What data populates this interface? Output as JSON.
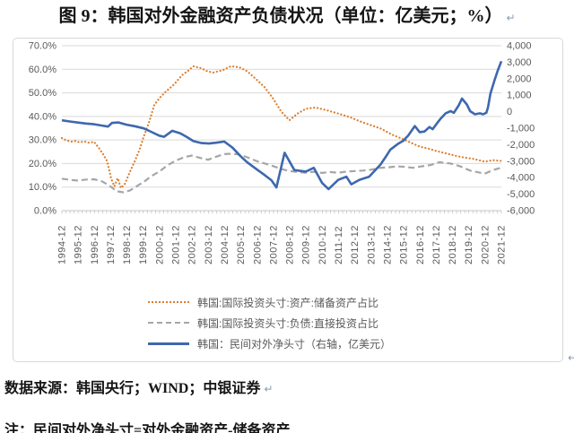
{
  "title": {
    "text": "图 9：韩国对外金融资产负债状况（单位：亿美元；%）",
    "pilcrow": "↵"
  },
  "source_line": "数据来源：韩国央行；WIND；中银证券",
  "source_pilcrow": "↵",
  "chart_pilcrow": "↵",
  "note_line": "注：民间对外净头寸=对外金融资产-储备资产",
  "colors": {
    "reserve_series": "#dc7e2e",
    "fdi_series": "#a6a6a6",
    "net_position_series": "#3e68ae",
    "gridline": "#d9d9d9",
    "axis_text": "#595959"
  },
  "chart_data": {
    "type": "line",
    "grid": true,
    "legend_position": "bottom",
    "x_axis": {
      "start": 1994.92,
      "end": 2021.92,
      "labels": [
        "1994-12",
        "1995-12",
        "1996-12",
        "1997-12",
        "1998-12",
        "1999-12",
        "2000-12",
        "2001-12",
        "2002-12",
        "2003-12",
        "2004-12",
        "2005-12",
        "2006-12",
        "2007-12",
        "2008-12",
        "2009-12",
        "2010-12",
        "2011-12",
        "2012-12",
        "2013-12",
        "2014-12",
        "2015-12",
        "2016-12",
        "2017-12",
        "2018-12",
        "2019-12",
        "2020-12",
        "2021-12"
      ],
      "minor_tick_interval": 0.25
    },
    "y_left": {
      "min": 0,
      "max": 70,
      "ticks": [
        "70.0%",
        "60.0%",
        "50.0%",
        "40.0%",
        "30.0%",
        "20.0%",
        "10.0%",
        "0.0%"
      ]
    },
    "y_right": {
      "min": -6000,
      "max": 4000,
      "ticks": [
        "4,000",
        "3,000",
        "2,000",
        "1,000",
        "0",
        "-1,000",
        "-2,000",
        "-3,000",
        "-4,000",
        "-5,000",
        "-6,000"
      ]
    },
    "series": [
      {
        "name": "韩国:国际投资头寸:资产:储备资产占比",
        "axis": "left",
        "style": "dotted",
        "color": "#dc7e2e",
        "width": 2.2,
        "points": [
          [
            1994.92,
            30.8
          ],
          [
            1995.2,
            29.8
          ],
          [
            1995.5,
            29.3
          ],
          [
            1995.75,
            29.6
          ],
          [
            1996.0,
            29.0
          ],
          [
            1996.3,
            29.4
          ],
          [
            1996.6,
            28.8
          ],
          [
            1996.9,
            29.2
          ],
          [
            1997.2,
            26.5
          ],
          [
            1997.45,
            24.0
          ],
          [
            1997.7,
            21.0
          ],
          [
            1997.95,
            13.5
          ],
          [
            1998.15,
            10.3
          ],
          [
            1998.35,
            13.8
          ],
          [
            1998.55,
            9.6
          ],
          [
            1998.8,
            11.5
          ],
          [
            1999.1,
            16.5
          ],
          [
            1999.4,
            21.0
          ],
          [
            1999.7,
            26.0
          ],
          [
            1999.95,
            31.5
          ],
          [
            2000.3,
            38.0
          ],
          [
            2000.6,
            45.0
          ],
          [
            2000.95,
            48.0
          ],
          [
            2001.3,
            50.5
          ],
          [
            2001.8,
            53.5
          ],
          [
            2002.3,
            57.5
          ],
          [
            2002.7,
            59.5
          ],
          [
            2003.0,
            61.3
          ],
          [
            2003.5,
            60.4
          ],
          [
            2003.8,
            59.3
          ],
          [
            2004.2,
            58.6
          ],
          [
            2004.8,
            59.6
          ],
          [
            2005.3,
            61.3
          ],
          [
            2005.8,
            60.9
          ],
          [
            2006.3,
            59.2
          ],
          [
            2006.9,
            55.5
          ],
          [
            2007.4,
            52.2
          ],
          [
            2007.9,
            47.5
          ],
          [
            2008.4,
            42.0
          ],
          [
            2008.9,
            38.4
          ],
          [
            2009.4,
            41.2
          ],
          [
            2009.9,
            43.2
          ],
          [
            2010.5,
            43.8
          ],
          [
            2011.2,
            42.6
          ],
          [
            2011.9,
            41.2
          ],
          [
            2012.6,
            39.7
          ],
          [
            2013.2,
            38.0
          ],
          [
            2013.9,
            36.3
          ],
          [
            2014.5,
            34.9
          ],
          [
            2015.2,
            32.3
          ],
          [
            2015.9,
            30.3
          ],
          [
            2016.5,
            28.4
          ],
          [
            2016.9,
            27.2
          ],
          [
            2017.5,
            26.2
          ],
          [
            2018.0,
            25.2
          ],
          [
            2018.6,
            24.2
          ],
          [
            2019.1,
            23.3
          ],
          [
            2019.6,
            22.6
          ],
          [
            2020.2,
            22.0
          ],
          [
            2020.9,
            20.8
          ],
          [
            2021.4,
            21.4
          ],
          [
            2021.92,
            21.1
          ]
        ]
      },
      {
        "name": "韩国:国际投资头寸:负债:直接投资占比",
        "axis": "left",
        "style": "dashed",
        "color": "#a6a6a6",
        "width": 2.2,
        "points": [
          [
            1994.92,
            13.6
          ],
          [
            1995.4,
            13.1
          ],
          [
            1995.9,
            12.8
          ],
          [
            1996.4,
            13.2
          ],
          [
            1996.9,
            13.3
          ],
          [
            1997.4,
            12.4
          ],
          [
            1997.9,
            10.3
          ],
          [
            1998.3,
            8.2
          ],
          [
            1998.7,
            7.8
          ],
          [
            1999.1,
            8.6
          ],
          [
            1999.5,
            10.3
          ],
          [
            1999.95,
            12.2
          ],
          [
            2000.4,
            14.6
          ],
          [
            2000.9,
            16.6
          ],
          [
            2001.4,
            19.2
          ],
          [
            2001.9,
            21.2
          ],
          [
            2002.4,
            22.6
          ],
          [
            2002.9,
            23.4
          ],
          [
            2003.4,
            22.4
          ],
          [
            2003.9,
            21.6
          ],
          [
            2004.4,
            22.9
          ],
          [
            2004.9,
            24.0
          ],
          [
            2005.4,
            24.2
          ],
          [
            2005.9,
            23.7
          ],
          [
            2006.4,
            22.4
          ],
          [
            2006.9,
            21.0
          ],
          [
            2007.4,
            20.0
          ],
          [
            2007.9,
            18.9
          ],
          [
            2008.4,
            17.7
          ],
          [
            2008.9,
            16.8
          ],
          [
            2009.4,
            16.4
          ],
          [
            2009.9,
            16.1
          ],
          [
            2010.4,
            16.5
          ],
          [
            2010.9,
            16.0
          ],
          [
            2011.4,
            16.4
          ],
          [
            2011.9,
            16.1
          ],
          [
            2012.4,
            16.6
          ],
          [
            2012.9,
            16.8
          ],
          [
            2013.4,
            17.0
          ],
          [
            2013.9,
            17.4
          ],
          [
            2014.5,
            18.2
          ],
          [
            2015.0,
            18.4
          ],
          [
            2015.5,
            18.8
          ],
          [
            2016.0,
            18.6
          ],
          [
            2016.5,
            18.2
          ],
          [
            2017.0,
            18.8
          ],
          [
            2017.6,
            19.4
          ],
          [
            2018.1,
            20.6
          ],
          [
            2018.8,
            20.0
          ],
          [
            2019.4,
            18.8
          ],
          [
            2020.0,
            17.0
          ],
          [
            2020.5,
            16.3
          ],
          [
            2020.9,
            15.7
          ],
          [
            2021.4,
            17.2
          ],
          [
            2021.92,
            18.3
          ]
        ]
      },
      {
        "name": "韩国：民间对外净头寸（右轴，亿美元）",
        "axis": "right",
        "style": "solid",
        "color": "#3e68ae",
        "width": 2.6,
        "points": [
          [
            1994.92,
            -520
          ],
          [
            1995.4,
            -590
          ],
          [
            1995.9,
            -660
          ],
          [
            1996.4,
            -720
          ],
          [
            1996.9,
            -760
          ],
          [
            1997.4,
            -840
          ],
          [
            1997.75,
            -900
          ],
          [
            1998.0,
            -680
          ],
          [
            1998.4,
            -650
          ],
          [
            1998.9,
            -790
          ],
          [
            1999.4,
            -880
          ],
          [
            1999.95,
            -1010
          ],
          [
            2000.4,
            -1220
          ],
          [
            2000.9,
            -1450
          ],
          [
            2001.2,
            -1520
          ],
          [
            2001.7,
            -1160
          ],
          [
            2002.2,
            -1310
          ],
          [
            2002.6,
            -1540
          ],
          [
            2003.0,
            -1780
          ],
          [
            2003.5,
            -1900
          ],
          [
            2003.95,
            -1930
          ],
          [
            2004.4,
            -1880
          ],
          [
            2004.9,
            -1810
          ],
          [
            2005.4,
            -2180
          ],
          [
            2005.9,
            -2700
          ],
          [
            2006.3,
            -3060
          ],
          [
            2006.8,
            -3430
          ],
          [
            2007.4,
            -3860
          ],
          [
            2007.8,
            -4160
          ],
          [
            2008.1,
            -4590
          ],
          [
            2008.6,
            -2490
          ],
          [
            2009.2,
            -3540
          ],
          [
            2009.9,
            -3630
          ],
          [
            2010.4,
            -3400
          ],
          [
            2010.9,
            -4310
          ],
          [
            2011.3,
            -4690
          ],
          [
            2011.9,
            -4130
          ],
          [
            2012.4,
            -3940
          ],
          [
            2012.7,
            -4400
          ],
          [
            2013.2,
            -4130
          ],
          [
            2013.8,
            -3940
          ],
          [
            2014.5,
            -3200
          ],
          [
            2014.8,
            -2760
          ],
          [
            2015.1,
            -2300
          ],
          [
            2015.6,
            -1930
          ],
          [
            2015.9,
            -1760
          ],
          [
            2016.2,
            -1440
          ],
          [
            2016.6,
            -870
          ],
          [
            2016.9,
            -1240
          ],
          [
            2017.2,
            -1200
          ],
          [
            2017.5,
            -930
          ],
          [
            2017.7,
            -1060
          ],
          [
            2018.0,
            -660
          ],
          [
            2018.2,
            -410
          ],
          [
            2018.5,
            -100
          ],
          [
            2018.8,
            40
          ],
          [
            2019.0,
            -70
          ],
          [
            2019.3,
            390
          ],
          [
            2019.5,
            800
          ],
          [
            2019.8,
            440
          ],
          [
            2020.0,
            30
          ],
          [
            2020.3,
            -160
          ],
          [
            2020.6,
            -100
          ],
          [
            2020.8,
            -160
          ],
          [
            2021.0,
            -60
          ],
          [
            2021.1,
            260
          ],
          [
            2021.25,
            1090
          ],
          [
            2021.5,
            1910
          ],
          [
            2021.7,
            2500
          ],
          [
            2021.92,
            3060
          ]
        ]
      }
    ]
  }
}
